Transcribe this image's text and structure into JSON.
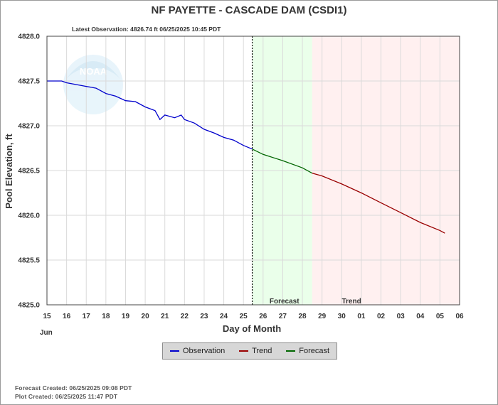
{
  "chart_data": {
    "type": "line",
    "title": "NF PAYETTE - CASCADE DAM  (CSDI1)",
    "subtitle": "Latest Observation: 4826.74 ft 06/25/2025 10:45 PDT",
    "xlabel": "Day of Month",
    "ylabel": "Pool Elevation, ft",
    "month_label": "Jun",
    "x_ticks": [
      "15",
      "16",
      "17",
      "18",
      "19",
      "20",
      "21",
      "22",
      "23",
      "24",
      "25",
      "26",
      "27",
      "28",
      "29",
      "30",
      "01",
      "02",
      "03",
      "04",
      "05",
      "06"
    ],
    "y_ticks": [
      "4825.0",
      "4825.5",
      "4826.0",
      "4826.5",
      "4827.0",
      "4827.5",
      "4828.0"
    ],
    "ylim": [
      4825.0,
      4828.0
    ],
    "xlim": [
      "2025-06-15",
      "2025-07-06"
    ],
    "grid": true,
    "region_labels": {
      "forecast": "Forecast",
      "trend": "Trend"
    },
    "regions": {
      "observed_end": "2025-06-25 10:45",
      "forecast": [
        "2025-06-25 10:45",
        "2025-06-28 12:00"
      ],
      "trend": [
        "2025-06-28 12:00",
        "2025-07-06 00:00"
      ]
    },
    "series": [
      {
        "name": "Observation",
        "color": "#0000cc",
        "points": [
          [
            "2025-06-15 00:00",
            4827.5
          ],
          [
            "2025-06-15 18:00",
            4827.5
          ],
          [
            "2025-06-16 00:00",
            4827.48
          ],
          [
            "2025-06-17 00:00",
            4827.44
          ],
          [
            "2025-06-17 12:00",
            4827.42
          ],
          [
            "2025-06-18 00:00",
            4827.36
          ],
          [
            "2025-06-18 12:00",
            4827.33
          ],
          [
            "2025-06-19 00:00",
            4827.28
          ],
          [
            "2025-06-19 12:00",
            4827.27
          ],
          [
            "2025-06-20 00:00",
            4827.21
          ],
          [
            "2025-06-20 12:00",
            4827.17
          ],
          [
            "2025-06-20 18:00",
            4827.07
          ],
          [
            "2025-06-21 00:00",
            4827.12
          ],
          [
            "2025-06-21 12:00",
            4827.09
          ],
          [
            "2025-06-21 20:00",
            4827.12
          ],
          [
            "2025-06-22 00:00",
            4827.07
          ],
          [
            "2025-06-22 12:00",
            4827.03
          ],
          [
            "2025-06-23 00:00",
            4826.96
          ],
          [
            "2025-06-23 12:00",
            4826.92
          ],
          [
            "2025-06-24 00:00",
            4826.87
          ],
          [
            "2025-06-24 12:00",
            4826.84
          ],
          [
            "2025-06-25 00:00",
            4826.78
          ],
          [
            "2025-06-25 10:45",
            4826.74
          ]
        ]
      },
      {
        "name": "Forecast",
        "color": "#006600",
        "points": [
          [
            "2025-06-25 10:45",
            4826.74
          ],
          [
            "2025-06-26 00:00",
            4826.68
          ],
          [
            "2025-06-27 00:00",
            4826.61
          ],
          [
            "2025-06-28 00:00",
            4826.53
          ],
          [
            "2025-06-28 12:00",
            4826.47
          ]
        ]
      },
      {
        "name": "Trend",
        "color": "#990000",
        "points": [
          [
            "2025-06-28 12:00",
            4826.47
          ],
          [
            "2025-06-29 00:00",
            4826.44
          ],
          [
            "2025-06-30 00:00",
            4826.35
          ],
          [
            "2025-07-01 00:00",
            4826.25
          ],
          [
            "2025-07-02 00:00",
            4826.14
          ],
          [
            "2025-07-03 00:00",
            4826.03
          ],
          [
            "2025-07-04 00:00",
            4825.92
          ],
          [
            "2025-07-05 00:00",
            4825.83
          ],
          [
            "2025-07-05 06:00",
            4825.8
          ]
        ]
      }
    ],
    "legend": [
      "Observation",
      "Trend",
      "Forecast"
    ],
    "legend_colors": {
      "Observation": "#0000cc",
      "Trend": "#990000",
      "Forecast": "#006600"
    },
    "region_colors": {
      "forecast": "#eaffea",
      "trend": "#fff0f0"
    }
  },
  "footer": {
    "forecast_created": "Forecast Created: 06/25/2025 09:08 PDT",
    "plot_created": "Plot Created: 06/25/2025 11:47 PDT"
  },
  "logo_text": "NOAA"
}
